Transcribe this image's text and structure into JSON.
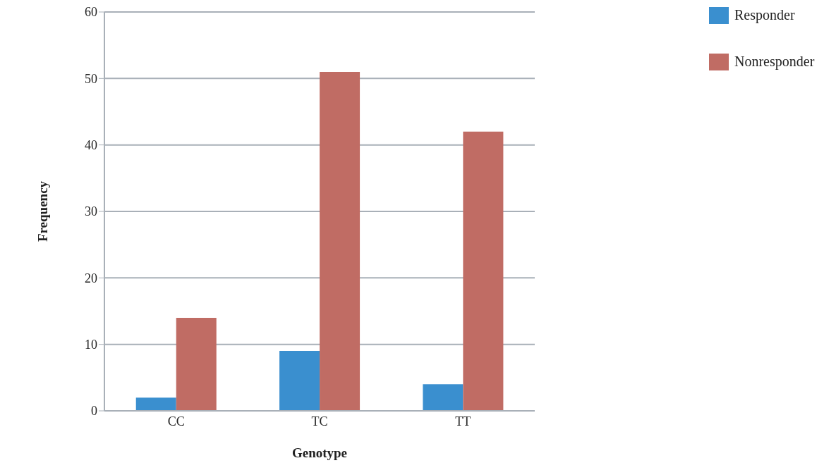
{
  "chart_data": {
    "type": "bar",
    "xlabel": "Genotype",
    "ylabel": "Frequency",
    "categories": [
      "CC",
      "TC",
      "TT"
    ],
    "series": [
      {
        "name": "Responder",
        "color": "#3a8fcf",
        "values": [
          2,
          9,
          4
        ]
      },
      {
        "name": "Nonresponder",
        "color": "#c06c64",
        "values": [
          14,
          51,
          42
        ]
      }
    ],
    "ylim": [
      0,
      60
    ],
    "yticks": [
      0,
      10,
      20,
      30,
      40,
      50,
      60
    ],
    "grid": "y",
    "legend": "top right"
  }
}
